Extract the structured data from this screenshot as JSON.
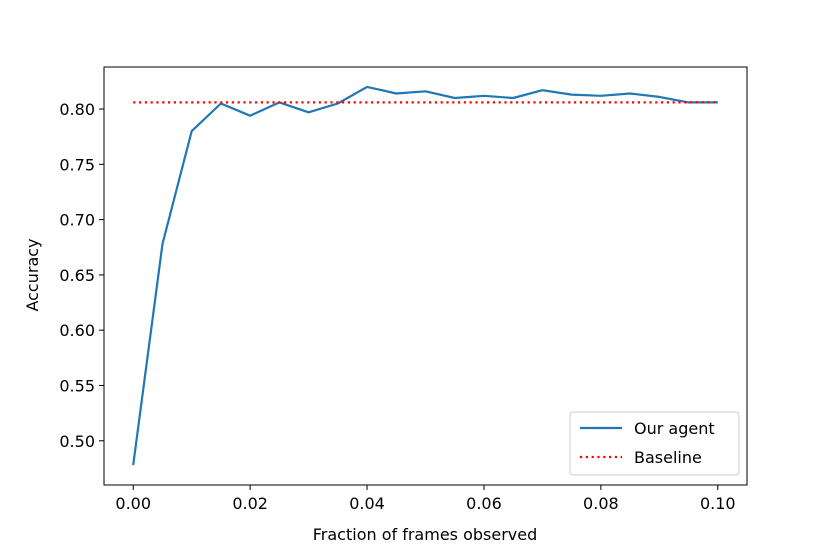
{
  "chart_data": {
    "type": "line",
    "xlabel": "Fraction of frames observed",
    "ylabel": "Accuracy",
    "xlim": [
      -0.005,
      0.105
    ],
    "ylim": [
      0.46,
      0.838
    ],
    "xticks": [
      0.0,
      0.02,
      0.04,
      0.06,
      0.08,
      0.1
    ],
    "xtick_labels": [
      "0.00",
      "0.02",
      "0.04",
      "0.06",
      "0.08",
      "0.10"
    ],
    "yticks": [
      0.5,
      0.55,
      0.6,
      0.65,
      0.7,
      0.75,
      0.8
    ],
    "ytick_labels": [
      "0.50",
      "0.55",
      "0.60",
      "0.65",
      "0.70",
      "0.75",
      "0.80"
    ],
    "grid": false,
    "legend_position": "lower-right",
    "series": [
      {
        "name": "Our agent",
        "color": "#1f77b4",
        "style": "solid",
        "x": [
          0.0,
          0.005,
          0.01,
          0.015,
          0.02,
          0.025,
          0.03,
          0.035,
          0.04,
          0.045,
          0.05,
          0.055,
          0.06,
          0.065,
          0.07,
          0.075,
          0.08,
          0.085,
          0.09,
          0.095,
          0.1
        ],
        "y": [
          0.478,
          0.678,
          0.78,
          0.805,
          0.794,
          0.806,
          0.797,
          0.805,
          0.82,
          0.814,
          0.816,
          0.81,
          0.812,
          0.81,
          0.817,
          0.813,
          0.812,
          0.814,
          0.811,
          0.806,
          0.806
        ]
      },
      {
        "name": "Baseline",
        "color": "#ff0000",
        "style": "dotted",
        "x": [
          0.0,
          0.1
        ],
        "y": [
          0.806,
          0.806
        ]
      }
    ]
  }
}
